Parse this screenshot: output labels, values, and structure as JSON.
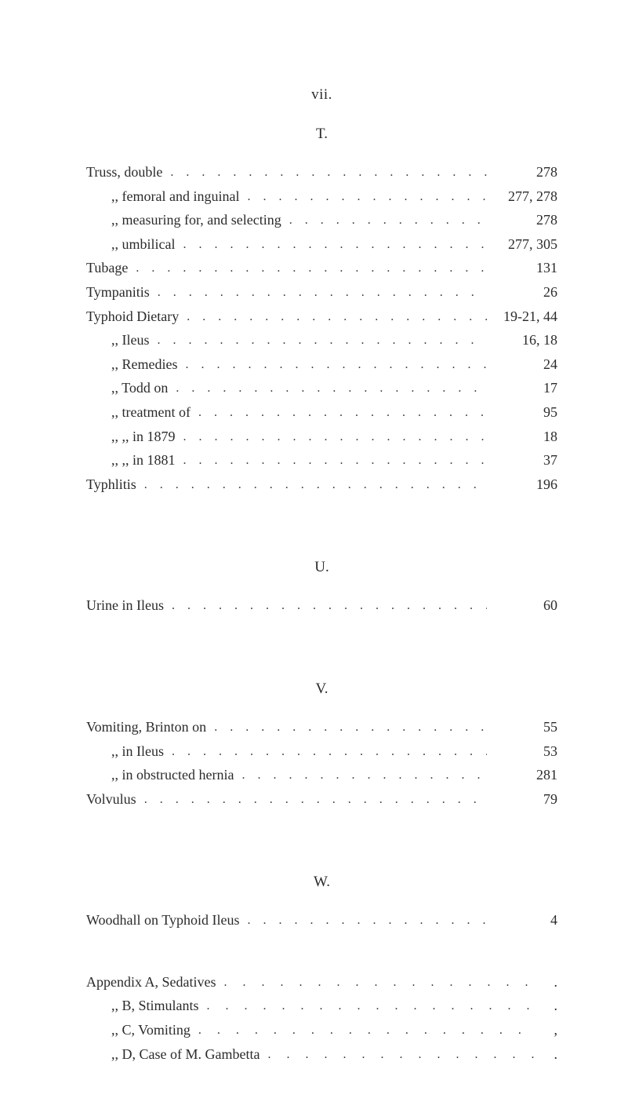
{
  "page": {
    "roman_header": "vii.",
    "colors": {
      "background": "#ffffff",
      "text": "#2b2b2b",
      "dot": "#3a3a3a"
    },
    "typography": {
      "body_fontsize_pt": 14,
      "header_fontsize_pt": 14,
      "font_family": "serif"
    }
  },
  "sections": {
    "T": {
      "letter": "T.",
      "entries": [
        {
          "label": "Truss, double",
          "page": "278",
          "indent": 0
        },
        {
          "label": ",,    femoral and inguinal",
          "page": "277, 278",
          "indent": 1
        },
        {
          "label": ",,    measuring for, and selecting",
          "page": "278",
          "indent": 1
        },
        {
          "label": ",,    umbilical",
          "page": "277, 305",
          "indent": 1
        },
        {
          "label": "Tubage",
          "page": "131",
          "indent": 0
        },
        {
          "label": "Tympanitis",
          "page": "26",
          "indent": 0
        },
        {
          "label": "Typhoid Dietary",
          "page": "19-21, 44",
          "indent": 0
        },
        {
          "label": ",,    Ileus",
          "page": "16, 18",
          "indent": 1
        },
        {
          "label": ",,    Remedies",
          "page": "24",
          "indent": 1
        },
        {
          "label": ",,    Todd on",
          "page": "17",
          "indent": 1
        },
        {
          "label": ",,    treatment of",
          "page": "95",
          "indent": 1
        },
        {
          "label": ",,        ,,    in 1879",
          "page": "18",
          "indent": 1
        },
        {
          "label": ",,        ,,    in 1881",
          "page": "37",
          "indent": 1
        },
        {
          "label": "Typhlitis",
          "page": "196",
          "indent": 0
        }
      ]
    },
    "U": {
      "letter": "U.",
      "entries": [
        {
          "label": "Urine in Ileus",
          "page": "60",
          "indent": 0
        }
      ]
    },
    "V": {
      "letter": "V.",
      "entries": [
        {
          "label": "Vomiting, Brinton on",
          "page": "55",
          "indent": 0
        },
        {
          "label": ",,    in Ileus",
          "page": "53",
          "indent": 1
        },
        {
          "label": ",,    in obstructed hernia",
          "page": "281",
          "indent": 1
        },
        {
          "label": "Volvulus",
          "page": "79",
          "indent": 0
        }
      ]
    },
    "W": {
      "letter": "W.",
      "entries": [
        {
          "label": "Woodhall on Typhoid Ileus",
          "page": "4",
          "indent": 0
        }
      ]
    }
  },
  "appendix": {
    "entries": [
      {
        "label": "Appendix A, Sedatives",
        "trail": "."
      },
      {
        "label": ",,    B, Stimulants",
        "trail": "."
      },
      {
        "label": ",,    C, Vomiting",
        "trail": ","
      },
      {
        "label": ",,    D, Case of M. Gambetta",
        "trail": "."
      }
    ]
  }
}
